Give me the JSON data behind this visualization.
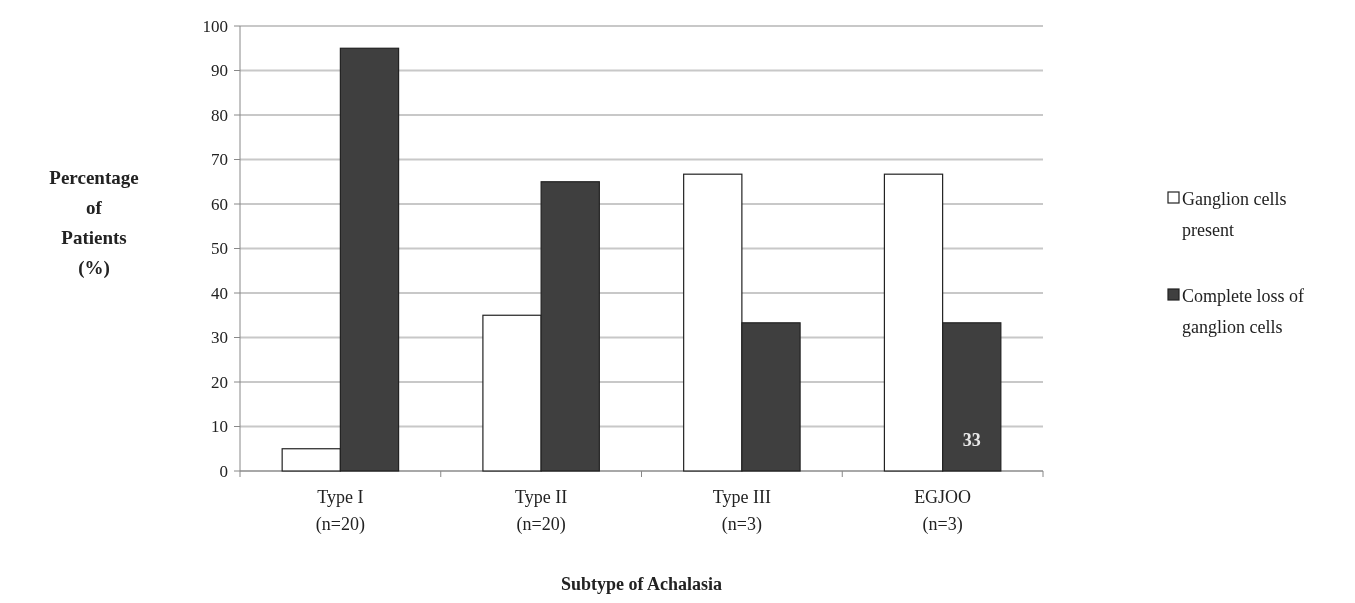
{
  "chart_data": {
    "type": "bar",
    "xlabel": "Subtype of Achalasia",
    "ylabel": "Percentage\nof\nPatients\n(%)",
    "categories": [
      "Type I\n(n=20)",
      "Type II\n(n=20)",
      "Type III\n(n=3)",
      "EGJOO\n(n=3)"
    ],
    "series": [
      {
        "name": "Ganglion cells present",
        "color": "#ffffff",
        "values": [
          5,
          35,
          66.7,
          66.7
        ]
      },
      {
        "name": "Complete loss of ganglion cells",
        "color": "#3f3f3f",
        "values": [
          95,
          65,
          33.3,
          33.3
        ]
      }
    ],
    "ylim": [
      0,
      100
    ],
    "yticks": [
      0,
      10,
      20,
      30,
      40,
      50,
      60,
      70,
      80,
      90,
      100
    ],
    "grid": "y",
    "legend": "right",
    "annotations": [
      {
        "text": "33",
        "x": "EGJOO\n(n=3)",
        "y": 7
      }
    ]
  }
}
